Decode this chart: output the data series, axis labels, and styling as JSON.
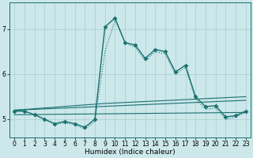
{
  "xlabel": "Humidex (Indice chaleur)",
  "bg_color": "#cce8ea",
  "grid_color": "#aacccc",
  "line_color": "#1a7070",
  "xlim": [
    -0.5,
    23.5
  ],
  "ylim": [
    4.6,
    7.6
  ],
  "yticks": [
    5,
    6,
    7
  ],
  "xticks": [
    0,
    1,
    2,
    3,
    4,
    5,
    6,
    7,
    8,
    9,
    10,
    11,
    12,
    13,
    14,
    15,
    16,
    17,
    18,
    19,
    20,
    21,
    22,
    23
  ],
  "series": [
    {
      "x": [
        0,
        1,
        2,
        3,
        4,
        5,
        6,
        7,
        8,
        9,
        10,
        11,
        12,
        13,
        14,
        15,
        16,
        17,
        18,
        19,
        20,
        21,
        22,
        23
      ],
      "y": [
        5.18,
        5.18,
        5.1,
        5.0,
        4.9,
        4.95,
        4.9,
        4.82,
        5.0,
        7.05,
        7.25,
        6.7,
        6.65,
        6.35,
        6.55,
        6.5,
        6.05,
        6.2,
        5.5,
        5.28,
        5.3,
        5.05,
        5.08,
        5.18
      ],
      "marker": "D",
      "markersize": 2.5,
      "linewidth": 1.0,
      "linestyle": "-"
    },
    {
      "x": [
        0,
        23
      ],
      "y": [
        5.1,
        5.15
      ],
      "marker": null,
      "markersize": 0,
      "linewidth": 0.8,
      "linestyle": "-"
    },
    {
      "x": [
        0,
        23
      ],
      "y": [
        5.2,
        5.42
      ],
      "marker": null,
      "markersize": 0,
      "linewidth": 0.8,
      "linestyle": "-"
    },
    {
      "x": [
        0,
        9,
        23
      ],
      "y": [
        5.2,
        5.35,
        5.5
      ],
      "marker": null,
      "markersize": 0,
      "linewidth": 0.8,
      "linestyle": "-"
    },
    {
      "x": [
        0,
        1,
        2,
        3,
        4,
        5,
        6,
        7,
        8,
        9,
        10,
        11,
        12,
        13,
        14,
        15,
        16,
        17,
        18,
        19,
        20,
        21,
        22,
        23
      ],
      "y": [
        5.18,
        5.18,
        5.1,
        5.0,
        4.88,
        4.92,
        4.88,
        4.78,
        4.95,
        6.5,
        7.2,
        6.7,
        6.6,
        6.3,
        6.5,
        6.45,
        6.0,
        6.15,
        5.45,
        5.22,
        5.25,
        5.0,
        5.05,
        5.15
      ],
      "marker": null,
      "markersize": 0,
      "linewidth": 0.8,
      "linestyle": ":"
    }
  ]
}
